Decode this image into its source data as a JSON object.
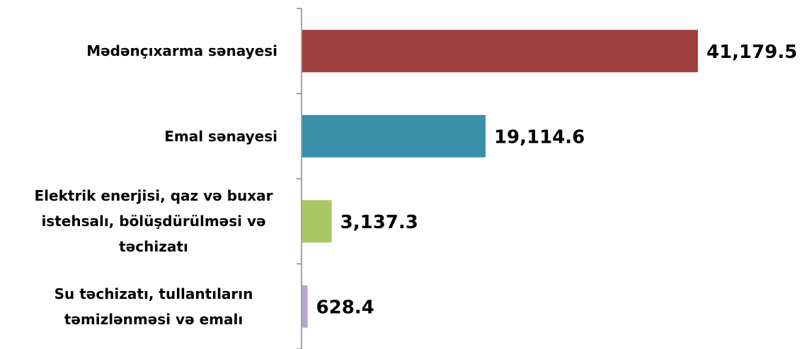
{
  "chart_data": {
    "type": "bar",
    "orientation": "horizontal",
    "categories": [
      "Mədənçıxarma sənayesi",
      "Emal sənayesi",
      "Elektrik enerjisi, qaz və buxar istehsalı, bölüşdürülməsi və təchizatı",
      "Su təchizatı, tullantıların təmizlənməsi və emalı"
    ],
    "values": [
      41179.5,
      19114.6,
      3137.3,
      628.4
    ],
    "value_labels": [
      "41,179.5",
      "19,114.6",
      "3,137.3",
      "628.4"
    ],
    "colors": [
      "#a0403e",
      "#3a8fa8",
      "#a9c864",
      "#b7a6d0"
    ]
  }
}
